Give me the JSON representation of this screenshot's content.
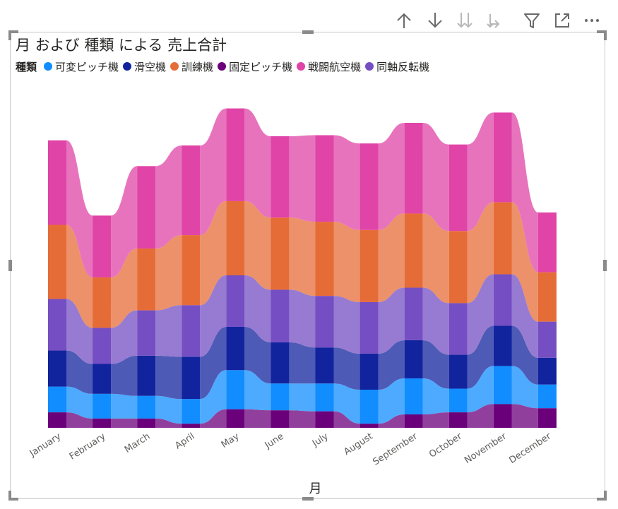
{
  "toolbar": {
    "icons": [
      "arrow-up-icon",
      "arrow-down-icon",
      "double-arrow-down-icon",
      "expand-hierarchy-icon",
      "filter-icon",
      "focus-mode-icon",
      "more-options-icon"
    ]
  },
  "chart_data": {
    "type": "ribbon",
    "title": "月 および 種類 による 売上合計",
    "legend_title": "種類",
    "legend_position": "top-left",
    "xlabel": "月",
    "ylabel": "",
    "grid": false,
    "categories": [
      "January",
      "February",
      "March",
      "April",
      "May",
      "June",
      "July",
      "August",
      "September",
      "October",
      "November",
      "December"
    ],
    "series": [
      {
        "name": "可変ピッチ機",
        "color": "#118DFF",
        "values": [
          25,
          24,
          22,
          24,
          38,
          26,
          27,
          33,
          35,
          23,
          37,
          23
        ]
      },
      {
        "name": "滑空機",
        "color": "#12239E",
        "values": [
          35,
          29,
          39,
          41,
          42,
          40,
          35,
          35,
          37,
          33,
          39,
          26
        ]
      },
      {
        "name": "訓練機",
        "color": "#E66C37",
        "values": [
          72,
          49,
          60,
          68,
          72,
          70,
          72,
          70,
          72,
          70,
          70,
          48
        ]
      },
      {
        "name": "固定ピッチ機",
        "color": "#6B007B",
        "values": [
          15,
          9,
          9,
          4,
          18,
          17,
          16,
          4,
          13,
          15,
          23,
          19
        ]
      },
      {
        "name": "戦闘航空機",
        "color": "#E044A7",
        "values": [
          82,
          60,
          80,
          87,
          90,
          79,
          84,
          84,
          88,
          84,
          87,
          58
        ]
      },
      {
        "name": "同軸反転機",
        "color": "#744EC2",
        "values": [
          50,
          35,
          44,
          50,
          50,
          51,
          50,
          50,
          51,
          50,
          50,
          35
        ]
      }
    ]
  }
}
